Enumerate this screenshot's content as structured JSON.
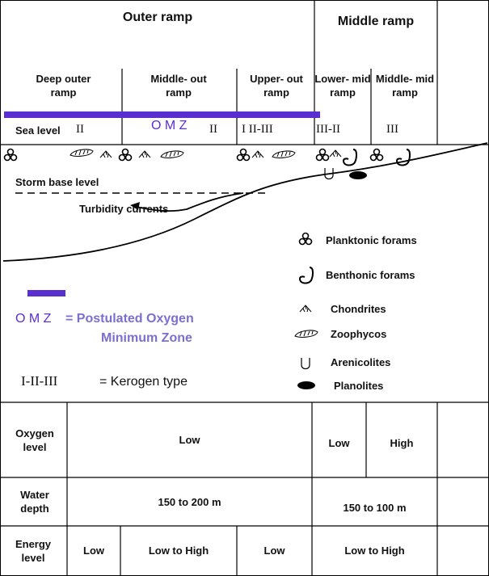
{
  "header": {
    "outer_ramp": "Outer ramp",
    "middle_ramp": "Middle ramp"
  },
  "zones": [
    "Deep outer ramp",
    "Middle- out ramp",
    "Upper- out ramp",
    "Lower- mid ramp",
    "Middle- mid ramp"
  ],
  "sea_level": "Sea level",
  "omz_mark": "O M Z",
  "kerogen_marks": [
    "II",
    "II",
    "I II-III",
    "III-II",
    "III"
  ],
  "storm_base": "Storm base level",
  "turbidity": "Turbidity currents",
  "legend": [
    "Planktonic forams",
    "Benthonic forams",
    "Chondrites",
    "Zoophycos",
    "Arenicolites",
    "Planolites"
  ],
  "omz_legend": {
    "abbr": "O M Z",
    "line1": "= Postulated Oxygen",
    "line2": "Minimum Zone"
  },
  "kerogen_legend": {
    "symbol": "I-II-III",
    "text": "= Kerogen type"
  },
  "table": {
    "rows": [
      {
        "label": "Oxygen level",
        "cells": [
          "Low",
          "Low",
          "High"
        ]
      },
      {
        "label": "Water depth",
        "cells": [
          "150 to 200 m",
          "150 to 100 m"
        ]
      },
      {
        "label": "Energy level",
        "cells": [
          "Low",
          "Low to High",
          "Low",
          "Low to High"
        ]
      }
    ]
  }
}
